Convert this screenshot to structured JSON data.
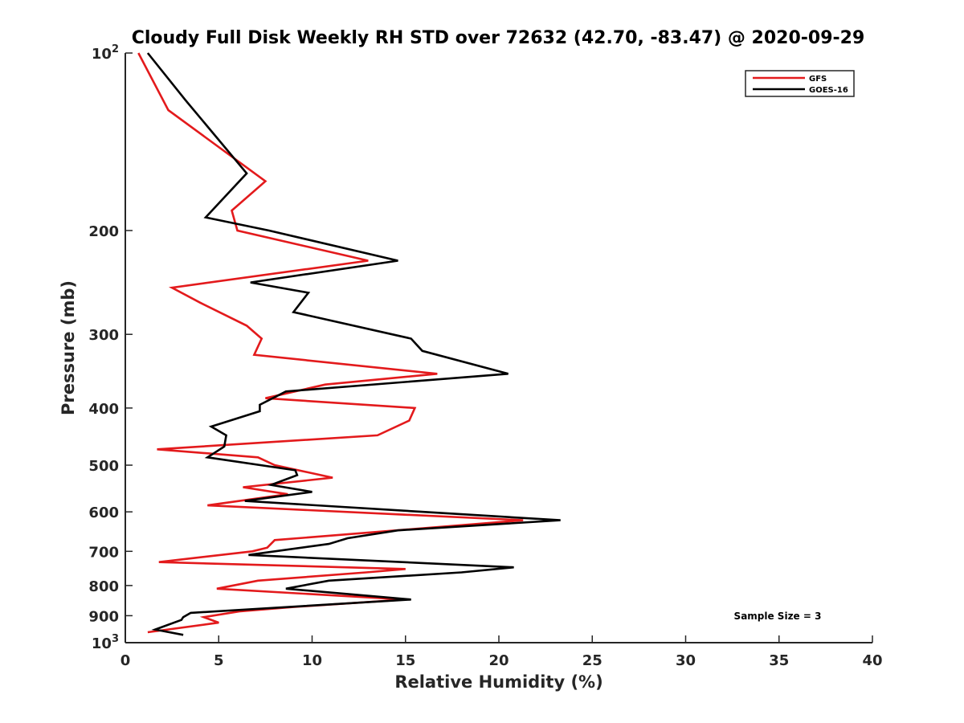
{
  "chart_data": {
    "type": "line",
    "title": "Cloudy Full Disk Weekly RH STD over 72632 (42.70, -83.47) @ 2020-09-29",
    "xlabel": "Relative Humidity (%)",
    "ylabel": "Pressure (mb)",
    "xlim": [
      0,
      40
    ],
    "ylim": [
      100,
      1000
    ],
    "yscale": "log",
    "y_reversed": true,
    "grid": false,
    "legend_position": "top-right",
    "x_ticks": [
      {
        "value": 0,
        "label": "0"
      },
      {
        "value": 5,
        "label": "5"
      },
      {
        "value": 10,
        "label": "10"
      },
      {
        "value": 15,
        "label": "15"
      },
      {
        "value": 20,
        "label": "20"
      },
      {
        "value": 25,
        "label": "25"
      },
      {
        "value": 30,
        "label": "30"
      },
      {
        "value": 35,
        "label": "35"
      },
      {
        "value": 40,
        "label": "40"
      }
    ],
    "y_ticks": [
      {
        "value": 100,
        "label": "10",
        "sup": "2"
      },
      {
        "value": 200,
        "label": "200",
        "sup": ""
      },
      {
        "value": 300,
        "label": "300",
        "sup": ""
      },
      {
        "value": 400,
        "label": "400",
        "sup": ""
      },
      {
        "value": 500,
        "label": "500",
        "sup": ""
      },
      {
        "value": 600,
        "label": "600",
        "sup": ""
      },
      {
        "value": 700,
        "label": "700",
        "sup": ""
      },
      {
        "value": 800,
        "label": "800",
        "sup": ""
      },
      {
        "value": 900,
        "label": "900",
        "sup": ""
      },
      {
        "value": 1000,
        "label": "10",
        "sup": "3"
      }
    ],
    "annotation": "Sample Size = 3",
    "series": [
      {
        "name": "GFS",
        "color": "#e31a1c",
        "points": [
          [
            0.7,
            100
          ],
          [
            2.3,
            125
          ],
          [
            7.5,
            165
          ],
          [
            5.7,
            185
          ],
          [
            6.0,
            200
          ],
          [
            13.0,
            225
          ],
          [
            2.5,
            250
          ],
          [
            4.0,
            265
          ],
          [
            6.5,
            290
          ],
          [
            7.3,
            305
          ],
          [
            6.9,
            325
          ],
          [
            16.7,
            350
          ],
          [
            10.7,
            365
          ],
          [
            7.5,
            385
          ],
          [
            15.5,
            400
          ],
          [
            15.2,
            420
          ],
          [
            13.5,
            445
          ],
          [
            1.7,
            470
          ],
          [
            7.1,
            485
          ],
          [
            8.0,
            500
          ],
          [
            11.1,
            525
          ],
          [
            6.3,
            545
          ],
          [
            8.7,
            560
          ],
          [
            4.4,
            585
          ],
          [
            21.3,
            620
          ],
          [
            11.9,
            655
          ],
          [
            8.0,
            670
          ],
          [
            7.6,
            690
          ],
          [
            6.8,
            700
          ],
          [
            1.8,
            730
          ],
          [
            15.0,
            750
          ],
          [
            12.9,
            760
          ],
          [
            7.1,
            785
          ],
          [
            4.9,
            810
          ],
          [
            15.0,
            845
          ],
          [
            9.0,
            870
          ],
          [
            6.1,
            885
          ],
          [
            4.2,
            905
          ],
          [
            5.0,
            925
          ],
          [
            1.2,
            960
          ]
        ]
      },
      {
        "name": "GOES-16",
        "color": "#000000",
        "points": [
          [
            1.2,
            100
          ],
          [
            3.2,
            120
          ],
          [
            6.5,
            160
          ],
          [
            4.3,
            190
          ],
          [
            7.7,
            200
          ],
          [
            14.6,
            225
          ],
          [
            6.7,
            245
          ],
          [
            9.8,
            255
          ],
          [
            9.0,
            275
          ],
          [
            15.3,
            305
          ],
          [
            15.9,
            320
          ],
          [
            20.5,
            350
          ],
          [
            8.6,
            375
          ],
          [
            7.2,
            395
          ],
          [
            7.2,
            405
          ],
          [
            4.6,
            430
          ],
          [
            5.4,
            445
          ],
          [
            5.3,
            465
          ],
          [
            4.4,
            485
          ],
          [
            9.1,
            510
          ],
          [
            9.2,
            520
          ],
          [
            7.8,
            540
          ],
          [
            10.0,
            555
          ],
          [
            6.4,
            575
          ],
          [
            23.3,
            620
          ],
          [
            14.6,
            645
          ],
          [
            11.9,
            665
          ],
          [
            10.9,
            680
          ],
          [
            6.6,
            710
          ],
          [
            20.8,
            745
          ],
          [
            18.0,
            760
          ],
          [
            10.9,
            785
          ],
          [
            8.6,
            810
          ],
          [
            15.3,
            845
          ],
          [
            3.5,
            890
          ],
          [
            3.1,
            905
          ],
          [
            3.0,
            915
          ],
          [
            1.6,
            950
          ],
          [
            3.1,
            970
          ]
        ]
      }
    ]
  }
}
